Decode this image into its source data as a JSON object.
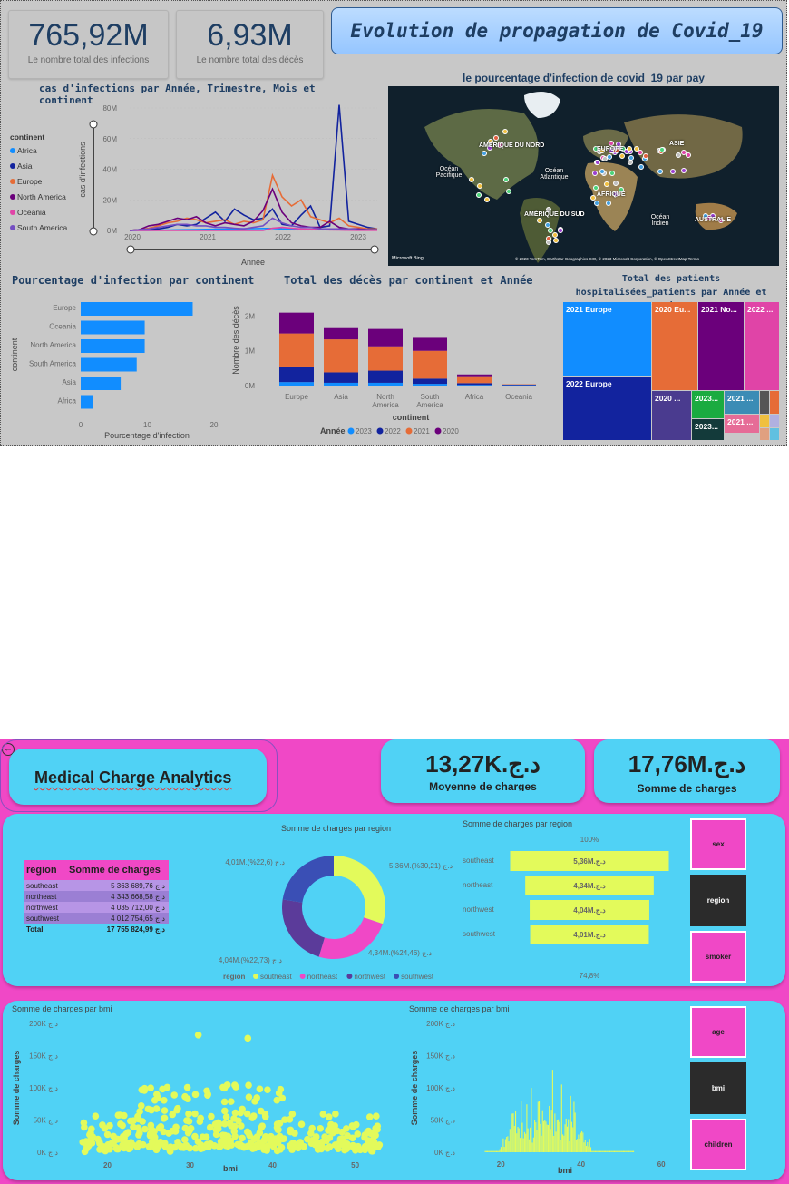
{
  "covid": {
    "kpi1": {
      "value": "765,92M",
      "label": "Le nombre total des infections"
    },
    "kpi2": {
      "value": "6,93M",
      "label": "Le nombre total des décès"
    },
    "title": "Evolution de propagation de Covid_19",
    "line_title": "cas d'infections par Année, Trimestre, Mois et continent",
    "map_title": "le pourcentage d'infection de covid_19 par pay",
    "map_labels": {
      "na": "AMÉRIQUE DU NORD",
      "eu": "EUROPE",
      "as": "ASIE",
      "op": "Océan Pacifique",
      "oa": "Océan Atlantique",
      "af": "AFRIQUE",
      "sa": "AMÉRIQUE DU SUD",
      "oi": "Océan Indien",
      "au": "AUSTRALIE",
      "bing": "Microsoft Bing",
      "credit": "© 2023 TomTom, Earthstar Geographics SIO, © 2023 Microsoft Corporation, © OpenStreetMap  Terms"
    },
    "bar_title": "Pourcentage d'infection par continent",
    "stack_title": "Total des décès par continent et Année",
    "tree_title": "Total des patients hospitalisées_patients par Année et continent",
    "legend_title": "continent"
  },
  "chart_data": [
    {
      "type": "line",
      "title": "cas d'infections par Année, Trimestre, Mois et continent",
      "xlabel": "Année",
      "ylabel": "cas d'infections",
      "x_ticks": [
        "2020",
        "2021",
        "2022",
        "2023"
      ],
      "y_ticks": [
        "0M",
        "20M",
        "40M",
        "60M",
        "80M"
      ],
      "ylim": [
        0,
        80
      ],
      "series": [
        {
          "name": "Africa",
          "color": "#118dff",
          "values": [
            0,
            0,
            0,
            0.2,
            0.3,
            0.4,
            0.5,
            0.6,
            0.7,
            0.8,
            0.9,
            1,
            1.1,
            1.2,
            1.3,
            1.3,
            1,
            0.9,
            0.8,
            0.7,
            0.6,
            0.5,
            0.5,
            0.4,
            0.3,
            0.2,
            0.2
          ]
        },
        {
          "name": "Asia",
          "color": "#12239e",
          "values": [
            0,
            0.5,
            1,
            1,
            2,
            4,
            3,
            4,
            8,
            12,
            6,
            14,
            10,
            7,
            8,
            14,
            4,
            3,
            10,
            16,
            2,
            3,
            82,
            6,
            4,
            2,
            1
          ]
        },
        {
          "name": "Europe",
          "color": "#e66c37",
          "values": [
            0,
            0.5,
            1.5,
            3,
            5,
            6,
            8,
            7,
            5,
            6,
            7,
            4,
            6,
            5,
            7,
            36,
            22,
            16,
            20,
            9,
            7,
            5,
            8,
            3,
            2,
            1,
            1
          ]
        },
        {
          "name": "North America",
          "color": "#6b007b",
          "values": [
            0,
            0.5,
            3,
            4,
            6,
            8,
            7,
            9,
            5,
            3,
            5,
            4,
            3,
            6,
            13,
            27,
            12,
            5,
            3,
            2,
            2,
            6,
            2,
            1,
            1,
            0.5,
            0.5
          ]
        },
        {
          "name": "Oceania",
          "color": "#e044a7",
          "values": [
            0,
            0,
            0,
            0,
            0,
            0,
            0,
            0,
            0,
            0,
            0,
            0,
            0,
            0,
            0,
            1.5,
            2,
            1.5,
            1,
            0.8,
            0.6,
            0.4,
            0.3,
            0.2,
            0.1,
            0.1,
            0.1
          ]
        },
        {
          "name": "South America",
          "color": "#744ec2",
          "values": [
            0,
            0.5,
            1,
            2,
            3,
            4,
            4,
            3,
            3,
            2,
            2,
            1.5,
            1,
            2,
            3,
            8,
            5,
            3,
            2,
            2,
            1,
            1,
            1,
            1,
            0.5,
            0.5,
            0.5
          ]
        }
      ]
    },
    {
      "type": "bar",
      "title": "Pourcentage d'infection par continent",
      "xlabel": "Pourcentage d'infection",
      "ylabel": "continent",
      "categories": [
        "Europe",
        "Oceania",
        "North America",
        "South America",
        "Asia",
        "Africa"
      ],
      "values": [
        16.8,
        9.6,
        9.6,
        8.4,
        6,
        1.9
      ],
      "x_ticks": [
        "0",
        "10",
        "20"
      ],
      "xlim": [
        0,
        20
      ]
    },
    {
      "type": "bar",
      "title": "Total des décès par continent et Année",
      "xlabel": "continent",
      "ylabel": "Nombre des décès",
      "categories": [
        "Europe",
        "Asia",
        "North America",
        "South America",
        "Africa",
        "Oceania"
      ],
      "y_ticks": [
        "0M",
        "1M",
        "2M"
      ],
      "ylim": [
        0,
        2.3
      ],
      "legend_title": "Année",
      "series": [
        {
          "name": "2023",
          "color": "#118dff",
          "values": [
            0.1,
            0.08,
            0.08,
            0.05,
            0.02,
            0.01
          ]
        },
        {
          "name": "2022",
          "color": "#12239e",
          "values": [
            0.45,
            0.3,
            0.35,
            0.15,
            0.05,
            0.02
          ]
        },
        {
          "name": "2021",
          "color": "#e66c37",
          "values": [
            0.95,
            0.95,
            0.7,
            0.8,
            0.2,
            0.01
          ]
        },
        {
          "name": "2020",
          "color": "#6b007b",
          "values": [
            0.6,
            0.35,
            0.5,
            0.4,
            0.05,
            0.0
          ]
        }
      ]
    },
    {
      "type": "treemap",
      "title": "Total des patients hospitalisées_patients par Année et continent",
      "cells": [
        {
          "label": "2021 Europe",
          "color": "#118dff"
        },
        {
          "label": "2022 Europe",
          "color": "#12239e"
        },
        {
          "label": "2020 Eu...",
          "color": "#e66c37"
        },
        {
          "label": "2021 No...",
          "color": "#6b007b"
        },
        {
          "label": "2022 ...",
          "color": "#e044a7"
        },
        {
          "label": "2020 ...",
          "color": "#4a3b8f"
        },
        {
          "label": "2023...",
          "color": "#1aab40"
        },
        {
          "label": "2021 ...",
          "color": "#3b8cb5"
        },
        {
          "label": "2021 ...",
          "color": "#e66c97"
        },
        {
          "label": "2023...",
          "color": "#133a3a"
        }
      ]
    },
    {
      "type": "pie",
      "title": "Somme de charges par region",
      "legend_title": "region",
      "categories": [
        "southeast",
        "northeast",
        "northwest",
        "southwest"
      ],
      "values": [
        5.36,
        4.34,
        4.04,
        4.01
      ],
      "colors": [
        "#e3fa5b",
        "#f048c6",
        "#5b3b9a",
        "#3a4fb5"
      ],
      "labels": [
        "5,36M.د.ج (30,21%)",
        "4,34M.د.ج (24,46%)",
        "4,04M.د.ج (22,73%)",
        "4,01M.د.ج (22,6%)"
      ]
    },
    {
      "type": "bar",
      "title": "Somme de charges par region",
      "categories": [
        "southeast",
        "northeast",
        "northwest",
        "southwest"
      ],
      "values": [
        5.36,
        4.34,
        4.04,
        4.01
      ],
      "labels": [
        "5,36M.د.ج",
        "4,34M.د.ج",
        "4,04M.د.ج",
        "4,01M.د.ج"
      ],
      "top_label": "100%",
      "bottom_label": "74,8%"
    },
    {
      "type": "scatter",
      "title": "Somme de charges par bmi",
      "xlabel": "bmi",
      "ylabel": "Somme de charges",
      "x_ticks": [
        "20",
        "30",
        "40",
        "50"
      ],
      "y_ticks": [
        "0K د.ج",
        "50K د.ج",
        "100K د.ج",
        "150K د.ج",
        "200K د.ج"
      ],
      "xlim": [
        15,
        54
      ],
      "ylim": [
        0,
        200
      ]
    },
    {
      "type": "bar",
      "title": "Somme de charges par bmi",
      "xlabel": "bmi",
      "ylabel": "Somme de charges",
      "x_ticks": [
        "20",
        "40",
        "60"
      ],
      "y_ticks": [
        "0K د.ج",
        "50K د.ج",
        "100K د.ج",
        "150K د.ج",
        "200K د.ج"
      ],
      "xlim": [
        10,
        62
      ],
      "ylim": [
        0,
        200
      ]
    }
  ],
  "medical": {
    "title": "Medical Charge Analytics",
    "kpi1": {
      "value": "13,27K.د.ج",
      "label": "Moyenne de charges"
    },
    "kpi2": {
      "value": "17,76M.د.ج",
      "label": "Somme de charges"
    },
    "table": {
      "headers": [
        "region",
        "Somme de charges"
      ],
      "rows": [
        [
          "southeast",
          "5 363 689,76 د.ج"
        ],
        [
          "northeast",
          "4 343 668,58 د.ج"
        ],
        [
          "northwest",
          "4 035 712,00 د.ج"
        ],
        [
          "southwest",
          "4 012 754,65 د.ج"
        ]
      ],
      "total": [
        "Total",
        "17 755 824,99 د.ج"
      ]
    },
    "slicers1": [
      "sex",
      "region",
      "smoker"
    ],
    "slicers2": [
      "age",
      "bmi",
      "children"
    ]
  }
}
